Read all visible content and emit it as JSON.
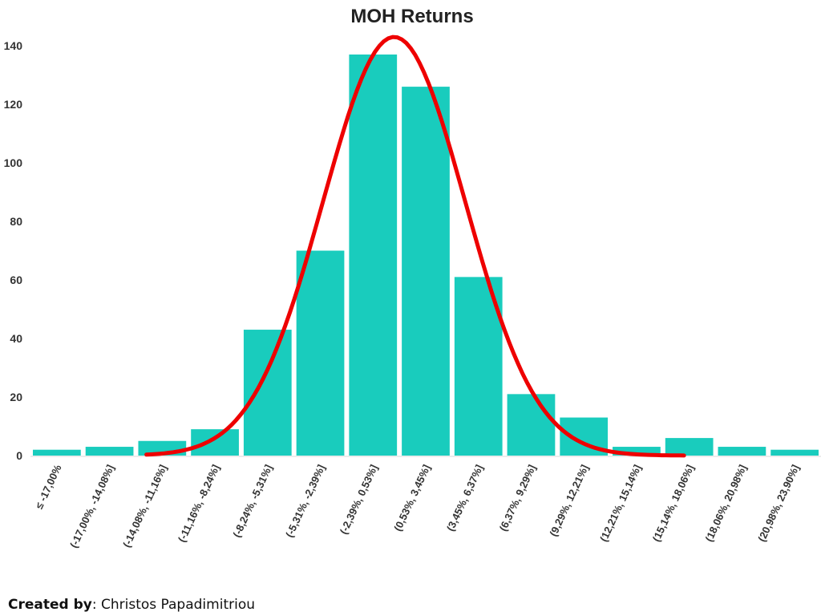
{
  "credit": {
    "label": "Created by",
    "name": ": Christos Papadimitriou"
  },
  "chart_data": {
    "type": "bar",
    "title": "MOH Returns",
    "xlabel": "",
    "ylabel": "",
    "ylim": [
      0,
      140
    ],
    "yticks": [
      0,
      20,
      40,
      60,
      80,
      100,
      120,
      140
    ],
    "categories": [
      "≤ -17,00%",
      "(-17,00%, -14,08%]",
      "(-14,08%, -11,16%]",
      "(-11,16%, -8,24%]",
      "(-8,24%, -5,31%]",
      "(-5,31%, -2,39%]",
      "(-2,39%, 0,53%]",
      "(0,53%, 3,45%]",
      "(3,45%, 6,37%]",
      "(6,37%, 9,29%]",
      "(9,29%, 12,21%]",
      "(12,21%, 15,14%]",
      "(15,14%, 18,06%]",
      "(18,06%, 20,98%]",
      "(20,98%, 23,90%]"
    ],
    "values": [
      2,
      3,
      5,
      9,
      43,
      70,
      137,
      126,
      61,
      21,
      13,
      3,
      6,
      3,
      2
    ],
    "grid": false,
    "bar_color": "#19ccbd",
    "overlay_curve": {
      "type": "normal-fit",
      "color": "#ee0000",
      "peak": 143,
      "mean_category_index": 6.4,
      "std_categories": 1.35,
      "from_category_index": 1.7,
      "to_category_index": 11.9
    }
  }
}
